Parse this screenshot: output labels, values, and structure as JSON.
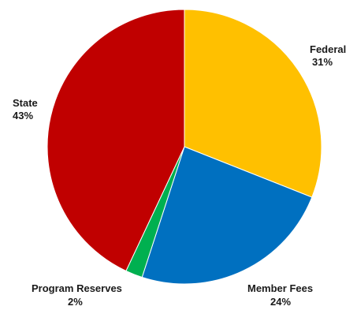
{
  "chart_data": {
    "type": "pie",
    "start_angle_deg": 0,
    "direction": "clockwise",
    "slices": [
      {
        "name": "Federal",
        "percent_label": "31%",
        "value": 31,
        "color": "#FFC000"
      },
      {
        "name": "Member Fees",
        "percent_label": "24%",
        "value": 24,
        "color": "#0070C0"
      },
      {
        "name": "Program Reserves",
        "percent_label": "2%",
        "value": 2,
        "color": "#00B050"
      },
      {
        "name": "State",
        "percent_label": "43%",
        "value": 43,
        "color": "#C00000"
      }
    ]
  }
}
